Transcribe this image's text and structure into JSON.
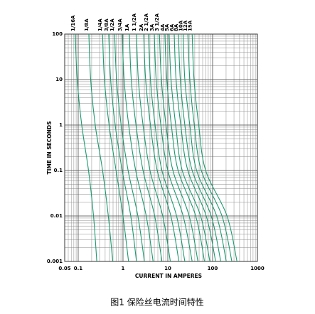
{
  "chart_data": {
    "type": "line",
    "caption": "图1 保险丝电流时间特性",
    "x_label": "CURRENT IN AMPERES",
    "y_label": "TIME IN SECONDS",
    "xlog": true,
    "ylog": true,
    "grid": true,
    "color": "#1b9a6e",
    "xlim": [
      0.05,
      1000
    ],
    "ylim": [
      0.001,
      100
    ],
    "xticks": [
      0.05,
      0.1,
      1,
      10,
      100,
      1000
    ],
    "yticks": [
      0.001,
      0.01,
      0.1,
      1,
      10,
      100
    ],
    "series": [
      {
        "name": "1/16A",
        "x": [
          0.086,
          0.095,
          0.12,
          0.17,
          0.22,
          0.26
        ],
        "values": [
          100,
          10,
          1,
          0.1,
          0.01,
          0.001
        ]
      },
      {
        "name": "1/8A",
        "x": [
          0.173,
          0.19,
          0.24,
          0.35,
          0.47,
          0.59
        ],
        "values": [
          100,
          10,
          1,
          0.1,
          0.01,
          0.001
        ]
      },
      {
        "name": "1/4A",
        "x": [
          0.35,
          0.385,
          0.49,
          0.7,
          1.0,
          1.33
        ],
        "values": [
          100,
          10,
          1,
          0.1,
          0.01,
          0.001
        ]
      },
      {
        "name": "3/8A",
        "x": [
          0.48,
          0.53,
          0.67,
          0.96,
          1.49,
          2.0
        ],
        "values": [
          100,
          10,
          1,
          0.1,
          0.01,
          0.001
        ]
      },
      {
        "name": "1/2A",
        "x": [
          0.65,
          0.72,
          0.91,
          1.3,
          2.15,
          3.0
        ],
        "values": [
          100,
          10,
          1,
          0.1,
          0.01,
          0.001
        ]
      },
      {
        "name": "3/4A",
        "x": [
          0.96,
          1.06,
          1.34,
          1.92,
          3.3,
          4.7
        ],
        "values": [
          100,
          10,
          1,
          0.1,
          0.01,
          0.001
        ]
      },
      {
        "name": "1A",
        "x": [
          1.39,
          1.53,
          1.95,
          2.8,
          5.1,
          7.4
        ],
        "values": [
          100,
          10,
          1,
          0.1,
          0.01,
          0.001
        ]
      },
      {
        "name": "1 1/2A",
        "x": [
          2.0,
          2.2,
          2.8,
          4.0,
          7.7,
          11.4
        ],
        "values": [
          100,
          10,
          1,
          0.1,
          0.01,
          0.001
        ]
      },
      {
        "name": "2A",
        "x": [
          2.9,
          3.2,
          4.1,
          5.8,
          11.7,
          17.7
        ],
        "values": [
          100,
          10,
          1,
          0.1,
          0.01,
          0.001
        ]
      },
      {
        "name": "2 1/2A",
        "x": [
          3.7,
          4.1,
          5.2,
          7.4,
          15.7,
          24
        ],
        "values": [
          100,
          10,
          1,
          0.1,
          0.01,
          0.001
        ]
      },
      {
        "name": "3A",
        "x": [
          5.0,
          5.5,
          7.0,
          10,
          22,
          35
        ],
        "values": [
          100,
          10,
          1,
          0.1,
          0.01,
          0.001
        ]
      },
      {
        "name": "3 1/2A",
        "x": [
          6.5,
          7.2,
          9.1,
          13,
          30,
          47
        ],
        "values": [
          100,
          10,
          1,
          0.1,
          0.01,
          0.001
        ]
      },
      {
        "name": "4A",
        "x": [
          8.6,
          9.5,
          12,
          17,
          42,
          66
        ],
        "values": [
          100,
          10,
          1,
          0.1,
          0.01,
          0.001
        ]
      },
      {
        "name": "5A",
        "x": [
          10.7,
          11.8,
          15,
          21,
          54,
          87
        ],
        "values": [
          100,
          10,
          1,
          0.1,
          0.01,
          0.001
        ]
      },
      {
        "name": "6A",
        "x": [
          13.9,
          15.3,
          19.5,
          28,
          72,
          117
        ],
        "values": [
          100,
          10,
          1,
          0.1,
          0.01,
          0.001
        ]
      },
      {
        "name": "8A",
        "x": [
          17.3,
          19,
          24,
          35,
          93,
          152
        ],
        "values": [
          100,
          10,
          1,
          0.1,
          0.01,
          0.001
        ]
      },
      {
        "name": "10A",
        "x": [
          22,
          24,
          31,
          44,
          123,
          202
        ],
        "values": [
          100,
          10,
          1,
          0.1,
          0.01,
          0.001
        ]
      },
      {
        "name": "12A",
        "x": [
          28,
          31,
          39,
          56,
          162,
          269
        ],
        "values": [
          100,
          10,
          1,
          0.1,
          0.01,
          0.001
        ]
      },
      {
        "name": "15A",
        "x": [
          35,
          38.5,
          49,
          70,
          210,
          350
        ],
        "values": [
          100,
          10,
          1,
          0.1,
          0.01,
          0.001
        ]
      }
    ]
  }
}
